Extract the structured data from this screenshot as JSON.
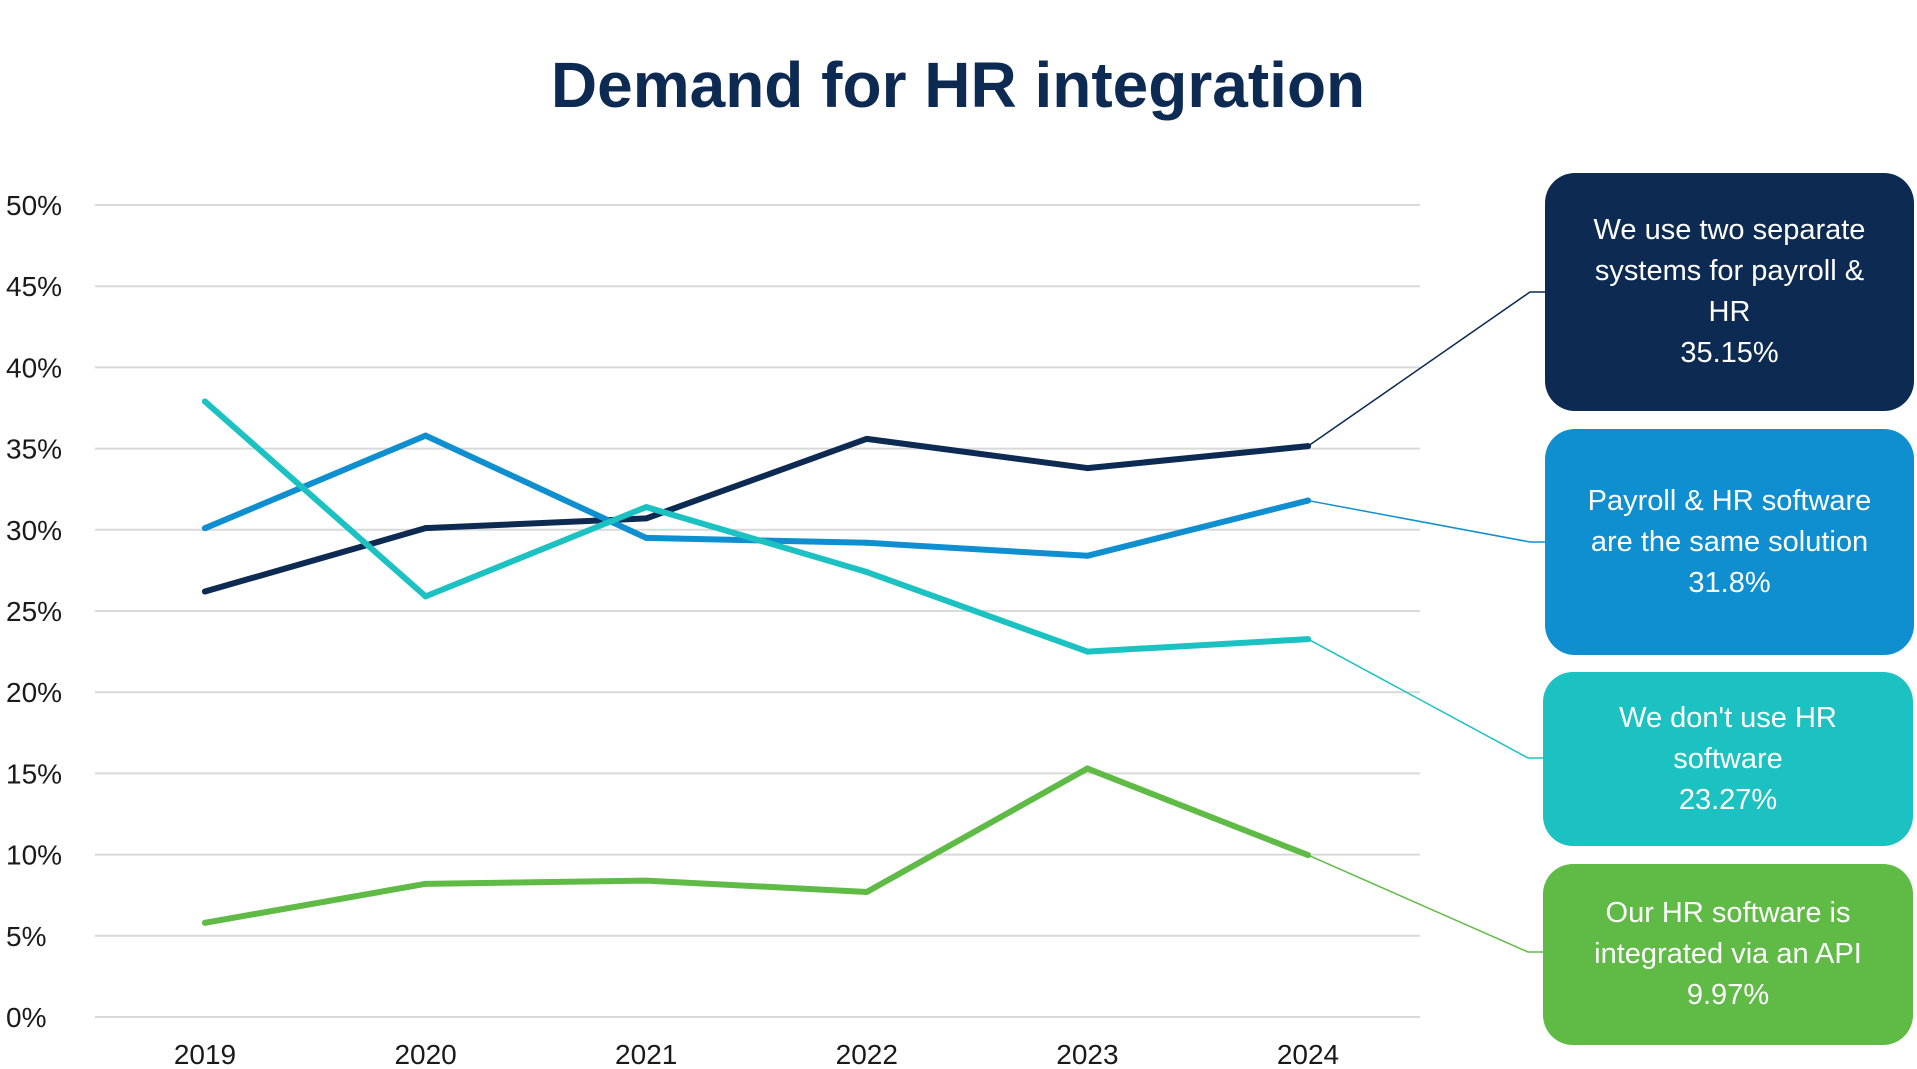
{
  "chart_data": {
    "type": "line",
    "title": "Demand for HR integration",
    "xlabel": "",
    "ylabel": "",
    "categories": [
      "2019",
      "2020",
      "2021",
      "2022",
      "2023",
      "2024"
    ],
    "ylim": [
      0,
      50
    ],
    "yticks": [
      0,
      5,
      10,
      15,
      20,
      25,
      30,
      35,
      40,
      45,
      50
    ],
    "ytick_labels": [
      "0%",
      "5%",
      "10%",
      "15%",
      "20%",
      "25%",
      "30%",
      "35%",
      "40%",
      "45%",
      "50%"
    ],
    "grid": true,
    "legend": "callouts-right",
    "series": [
      {
        "name": "We use two separate systems for payroll & HR",
        "label_lines": [
          "We use two separate",
          "systems for payroll &",
          "HR"
        ],
        "value_label": "35.15%",
        "color": "#0d2a52",
        "values": [
          26.2,
          30.1,
          30.7,
          35.6,
          33.8,
          35.15
        ]
      },
      {
        "name": "Payroll & HR software are the same solution",
        "label_lines": [
          "Payroll & HR software",
          "are the same solution"
        ],
        "value_label": "31.8%",
        "color": "#0f8fd0",
        "values": [
          30.1,
          35.8,
          29.5,
          29.2,
          28.4,
          31.8
        ]
      },
      {
        "name": "We don't use HR software",
        "label_lines": [
          "We don't use HR",
          "software"
        ],
        "value_label": "23.27%",
        "color": "#1cc2c2",
        "values": [
          37.9,
          25.9,
          31.4,
          27.4,
          22.5,
          23.27
        ]
      },
      {
        "name": "Our HR software is integrated via an API",
        "label_lines": [
          "Our HR software is",
          "integrated via an API"
        ],
        "value_label": "9.97%",
        "color": "#5fbb46",
        "values": [
          5.8,
          8.2,
          8.4,
          7.7,
          15.3,
          9.97
        ]
      }
    ]
  },
  "colors": {
    "title": "#0d2a52",
    "grid": "#d9d9d9",
    "tick_text": "#1a1a1a"
  }
}
